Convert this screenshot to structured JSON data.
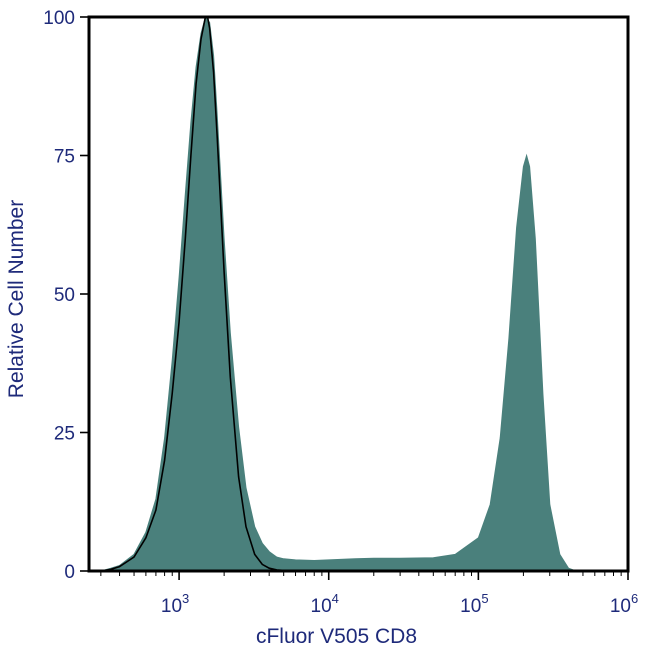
{
  "chart_data": {
    "type": "area",
    "title": "",
    "xlabel": "cFluor V505 CD8",
    "ylabel": "Relative Cell Number",
    "x_scale": "log",
    "xlim": [
      250,
      1000000
    ],
    "ylim": [
      0,
      100
    ],
    "x_ticks": [
      {
        "base": "10",
        "exp": "3",
        "value": 1000
      },
      {
        "base": "10",
        "exp": "4",
        "value": 10000
      },
      {
        "base": "10",
        "exp": "5",
        "value": 100000
      },
      {
        "base": "10",
        "exp": "6",
        "value": 1000000
      }
    ],
    "y_ticks": [
      "0",
      "25",
      "50",
      "75",
      "100"
    ],
    "grid": false,
    "series": [
      {
        "style": "filled",
        "color": "#4a807c",
        "x": [
          250,
          300,
          350,
          400,
          500,
          600,
          700,
          800,
          900,
          1000,
          1100,
          1200,
          1300,
          1400,
          1500,
          1600,
          1700,
          1800,
          2000,
          2200,
          2500,
          2800,
          3200,
          3600,
          4000,
          4500,
          5000,
          6000,
          8000,
          10000,
          15000,
          20000,
          30000,
          50000,
          70000,
          100000,
          120000,
          140000,
          160000,
          180000,
          200000,
          210000,
          220000,
          240000,
          270000,
          300000,
          350000,
          400000,
          450000
        ],
        "y": [
          0,
          0,
          0.5,
          1,
          3,
          7,
          13,
          24,
          38,
          53,
          68,
          81,
          91,
          97,
          100,
          99,
          93,
          82,
          60,
          43,
          26,
          15,
          8,
          5,
          3.5,
          2.5,
          2.2,
          2,
          1.9,
          2,
          2.2,
          2.3,
          2.3,
          2.4,
          3,
          6,
          12,
          24,
          42,
          62,
          73,
          75,
          73,
          60,
          32,
          12,
          3,
          0.5,
          0
        ]
      },
      {
        "style": "line",
        "color": "#000000",
        "x": [
          250,
          300,
          350,
          400,
          500,
          600,
          700,
          800,
          900,
          1000,
          1100,
          1200,
          1300,
          1400,
          1500,
          1550,
          1600,
          1700,
          1800,
          2000,
          2200,
          2500,
          2800,
          3200,
          3600,
          4000,
          4500,
          5000,
          6000,
          8000
        ],
        "y": [
          0,
          0,
          0.3,
          0.8,
          2.5,
          6,
          11,
          20,
          32,
          45,
          60,
          75,
          88,
          96,
          100,
          100,
          98,
          90,
          78,
          54,
          35,
          17,
          8,
          3,
          1.2,
          0.5,
          0.2,
          0.1,
          0,
          0
        ]
      }
    ]
  }
}
